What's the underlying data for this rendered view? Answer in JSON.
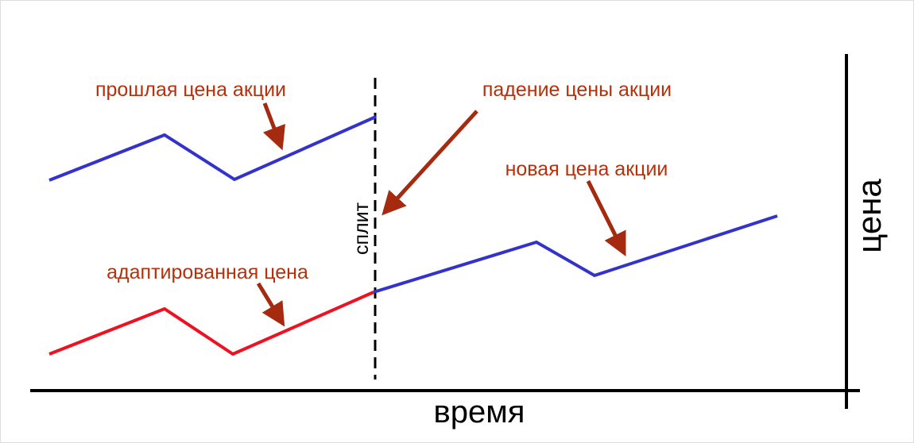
{
  "diagram": {
    "axes": {
      "x_label": "время",
      "y_label": "цена"
    },
    "split_label": "сплит",
    "annotations": {
      "old_price": "прошлая цена акции",
      "price_drop": "падение цены акции",
      "new_price": "новая цена акции",
      "adjusted_price": "адаптированная цена"
    }
  }
}
